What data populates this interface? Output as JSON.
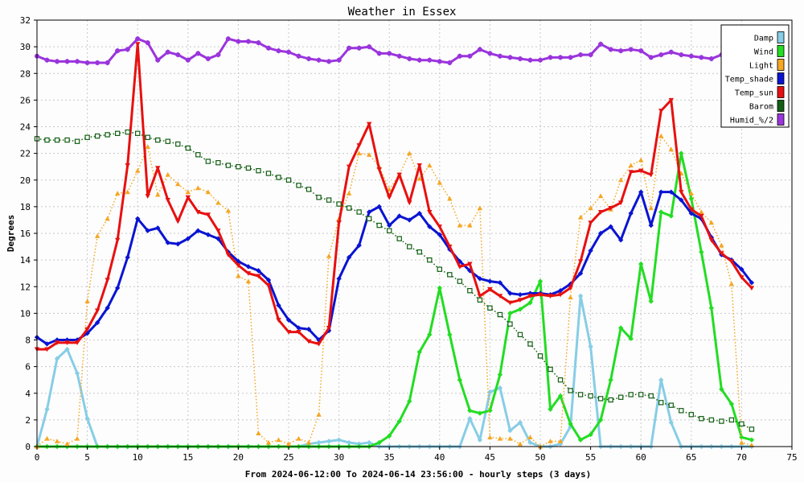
{
  "chart_data": {
    "type": "line",
    "title": "Weather in Essex",
    "xlabel": "From 2024-06-12:00 To 2024-06-14 23:56:00 - hourly steps (3 days)",
    "ylabel": "Degrees",
    "xlim": [
      0,
      75
    ],
    "ylim": [
      0,
      32
    ],
    "xticks": [
      0,
      5,
      10,
      15,
      20,
      25,
      30,
      35,
      40,
      45,
      50,
      55,
      60,
      65,
      70,
      75
    ],
    "yticks": [
      0,
      2,
      4,
      6,
      8,
      10,
      12,
      14,
      16,
      18,
      20,
      22,
      24,
      26,
      28,
      30,
      32
    ],
    "grid": true,
    "legend_position": "top-right",
    "series": [
      {
        "name": "Damp",
        "color": "#87cde6",
        "marker": "diamond",
        "style": "solid",
        "width": 3,
        "values": [
          0,
          2.8,
          6.6,
          7.3,
          5.5,
          2.1,
          0,
          0,
          0,
          0,
          0,
          0,
          0,
          0,
          0,
          0,
          0,
          0,
          0,
          0,
          0,
          0,
          0,
          0,
          0,
          0,
          0,
          0.2,
          0.3,
          0.4,
          0.5,
          0.3,
          0.2,
          0.3,
          0,
          0,
          0,
          0,
          0,
          0,
          0,
          0,
          0,
          2.1,
          0.5,
          4.1,
          4.4,
          1.2,
          1.8,
          0.3,
          0,
          0,
          0.2,
          1.5,
          11.3,
          7.5,
          0,
          0,
          0,
          0,
          0,
          0,
          5.0,
          1.8,
          0,
          0,
          0,
          0,
          0,
          0,
          0,
          0
        ]
      },
      {
        "name": "Wind",
        "color": "#22dd22",
        "marker": "diamond",
        "style": "solid",
        "width": 3,
        "values": [
          0,
          0,
          0,
          0,
          0,
          0,
          0,
          0,
          0,
          0,
          0,
          0,
          0,
          0,
          0,
          0,
          0,
          0,
          0,
          0,
          0,
          0,
          0,
          0,
          0,
          0,
          0,
          0,
          0,
          0,
          0,
          0,
          0,
          0,
          0.3,
          0.8,
          1.9,
          3.4,
          7.1,
          8.4,
          11.9,
          8.4,
          5.0,
          2.7,
          2.5,
          2.7,
          5.4,
          10.0,
          10.3,
          10.8,
          12.4,
          2.8,
          3.8,
          1.7,
          0.5,
          0.9,
          2.0,
          5.0,
          8.9,
          8.1,
          13.7,
          10.9,
          17.6,
          17.3,
          22.0,
          18.6,
          14.6,
          10.4,
          4.3,
          3.2,
          0.7,
          0.5
        ]
      },
      {
        "name": "Light",
        "color": "#f5a623",
        "marker": "triangle",
        "style": "dotted",
        "width": 1.5,
        "values": [
          0,
          0.6,
          0.4,
          0.2,
          0.6,
          10.9,
          15.8,
          17.1,
          19.0,
          19.1,
          20.7,
          22.5,
          18.9,
          20.4,
          19.7,
          19.1,
          19.4,
          19.1,
          18.3,
          17.7,
          12.8,
          12.4,
          1.0,
          0.3,
          0.5,
          0.2,
          0.6,
          0.3,
          2.4,
          14.3,
          17.1,
          19.0,
          22.0,
          21.9,
          21.0,
          19.3,
          20.4,
          22.0,
          20.1,
          21.1,
          19.8,
          18.6,
          16.6,
          16.6,
          17.9,
          0.7,
          0.6,
          0.6,
          0.2,
          0.7,
          0,
          0.4,
          0.4,
          11.2,
          17.2,
          17.9,
          18.8,
          17.8,
          20.0,
          21.1,
          21.5,
          17.9,
          23.3,
          22.3,
          20.5,
          19.0,
          17.6,
          16.8,
          15.1,
          12.2,
          0.3,
          0.1
        ]
      },
      {
        "name": "Temp_shade",
        "color": "#0a14d2",
        "marker": "diamond",
        "style": "solid",
        "width": 3,
        "values": [
          8.2,
          7.7,
          8.0,
          8.0,
          8.0,
          8.5,
          9.3,
          10.4,
          11.9,
          14.2,
          17.1,
          16.2,
          16.4,
          15.3,
          15.2,
          15.6,
          16.2,
          15.9,
          15.6,
          14.6,
          13.9,
          13.5,
          13.2,
          12.5,
          10.6,
          9.5,
          8.9,
          8.8,
          8.0,
          8.7,
          12.6,
          14.2,
          15.1,
          17.6,
          18.0,
          16.6,
          17.3,
          17.0,
          17.5,
          16.5,
          15.9,
          14.8,
          13.9,
          13.2,
          12.6,
          12.4,
          12.3,
          11.5,
          11.4,
          11.5,
          11.5,
          11.4,
          11.7,
          12.2,
          13.0,
          14.7,
          16.0,
          16.5,
          15.5,
          17.5,
          19.1,
          16.6,
          19.1,
          19.1,
          18.5,
          17.5,
          17.1,
          15.7,
          14.4,
          14.0,
          13.3,
          12.3
        ]
      },
      {
        "name": "Temp_sun",
        "color": "#e81010",
        "marker": "triangle-down",
        "style": "solid",
        "width": 3,
        "values": [
          7.3,
          7.3,
          7.8,
          7.8,
          7.8,
          8.8,
          10.2,
          12.5,
          15.5,
          21.1,
          30.2,
          18.8,
          20.9,
          18.5,
          16.9,
          18.7,
          17.6,
          17.4,
          16.2,
          14.4,
          13.6,
          13.0,
          12.8,
          12.1,
          9.5,
          8.6,
          8.6,
          7.9,
          7.7,
          8.9,
          16.8,
          21.0,
          22.6,
          24.2,
          20.8,
          18.7,
          20.4,
          18.3,
          21.1,
          17.6,
          16.5,
          15.0,
          13.5,
          13.7,
          11.3,
          11.8,
          11.3,
          10.8,
          11.0,
          11.3,
          11.4,
          11.3,
          11.4,
          11.9,
          13.9,
          16.8,
          17.6,
          17.9,
          18.3,
          20.6,
          20.7,
          20.4,
          25.2,
          26.0,
          19.1,
          17.8,
          17.3,
          15.5,
          14.5,
          13.9,
          12.7,
          11.9
        ]
      },
      {
        "name": "Barom",
        "color": "#135e13",
        "marker": "square",
        "style": "dotted",
        "width": 1.5,
        "values": [
          23.1,
          23.0,
          23.0,
          23.0,
          22.9,
          23.2,
          23.3,
          23.4,
          23.5,
          23.6,
          23.5,
          23.2,
          23.0,
          22.9,
          22.7,
          22.4,
          21.9,
          21.4,
          21.3,
          21.1,
          21.0,
          20.9,
          20.7,
          20.5,
          20.2,
          20.0,
          19.6,
          19.3,
          18.7,
          18.5,
          18.2,
          17.9,
          17.6,
          17.1,
          16.6,
          16.2,
          15.6,
          15.0,
          14.6,
          14.0,
          13.3,
          12.9,
          12.4,
          11.7,
          11.0,
          10.4,
          9.9,
          9.2,
          8.4,
          7.7,
          6.8,
          5.8,
          5.0,
          4.2,
          3.9,
          3.8,
          3.6,
          3.5,
          3.7,
          3.9,
          3.9,
          3.8,
          3.3,
          3.1,
          2.7,
          2.4,
          2.1,
          2.0,
          1.9,
          2.0,
          1.7,
          1.3
        ]
      },
      {
        "name": "Humid_%/2",
        "color": "#9a35dd",
        "marker": "star",
        "style": "solid",
        "width": 3,
        "values": [
          29.3,
          29.0,
          28.9,
          28.9,
          28.9,
          28.8,
          28.8,
          28.8,
          29.7,
          29.8,
          30.6,
          30.3,
          29.0,
          29.6,
          29.4,
          29.0,
          29.5,
          29.1,
          29.4,
          30.6,
          30.4,
          30.4,
          30.3,
          29.9,
          29.7,
          29.6,
          29.3,
          29.1,
          29.0,
          28.9,
          29.0,
          29.9,
          29.9,
          30.0,
          29.5,
          29.5,
          29.3,
          29.1,
          29.0,
          29.0,
          28.9,
          28.8,
          29.3,
          29.3,
          29.8,
          29.5,
          29.3,
          29.2,
          29.1,
          29.0,
          29.0,
          29.2,
          29.2,
          29.2,
          29.4,
          29.4,
          30.2,
          29.8,
          29.7,
          29.8,
          29.7,
          29.2,
          29.4,
          29.6,
          29.4,
          29.3,
          29.2,
          29.1,
          29.4,
          29.8,
          29.8,
          29.7
        ]
      }
    ]
  }
}
